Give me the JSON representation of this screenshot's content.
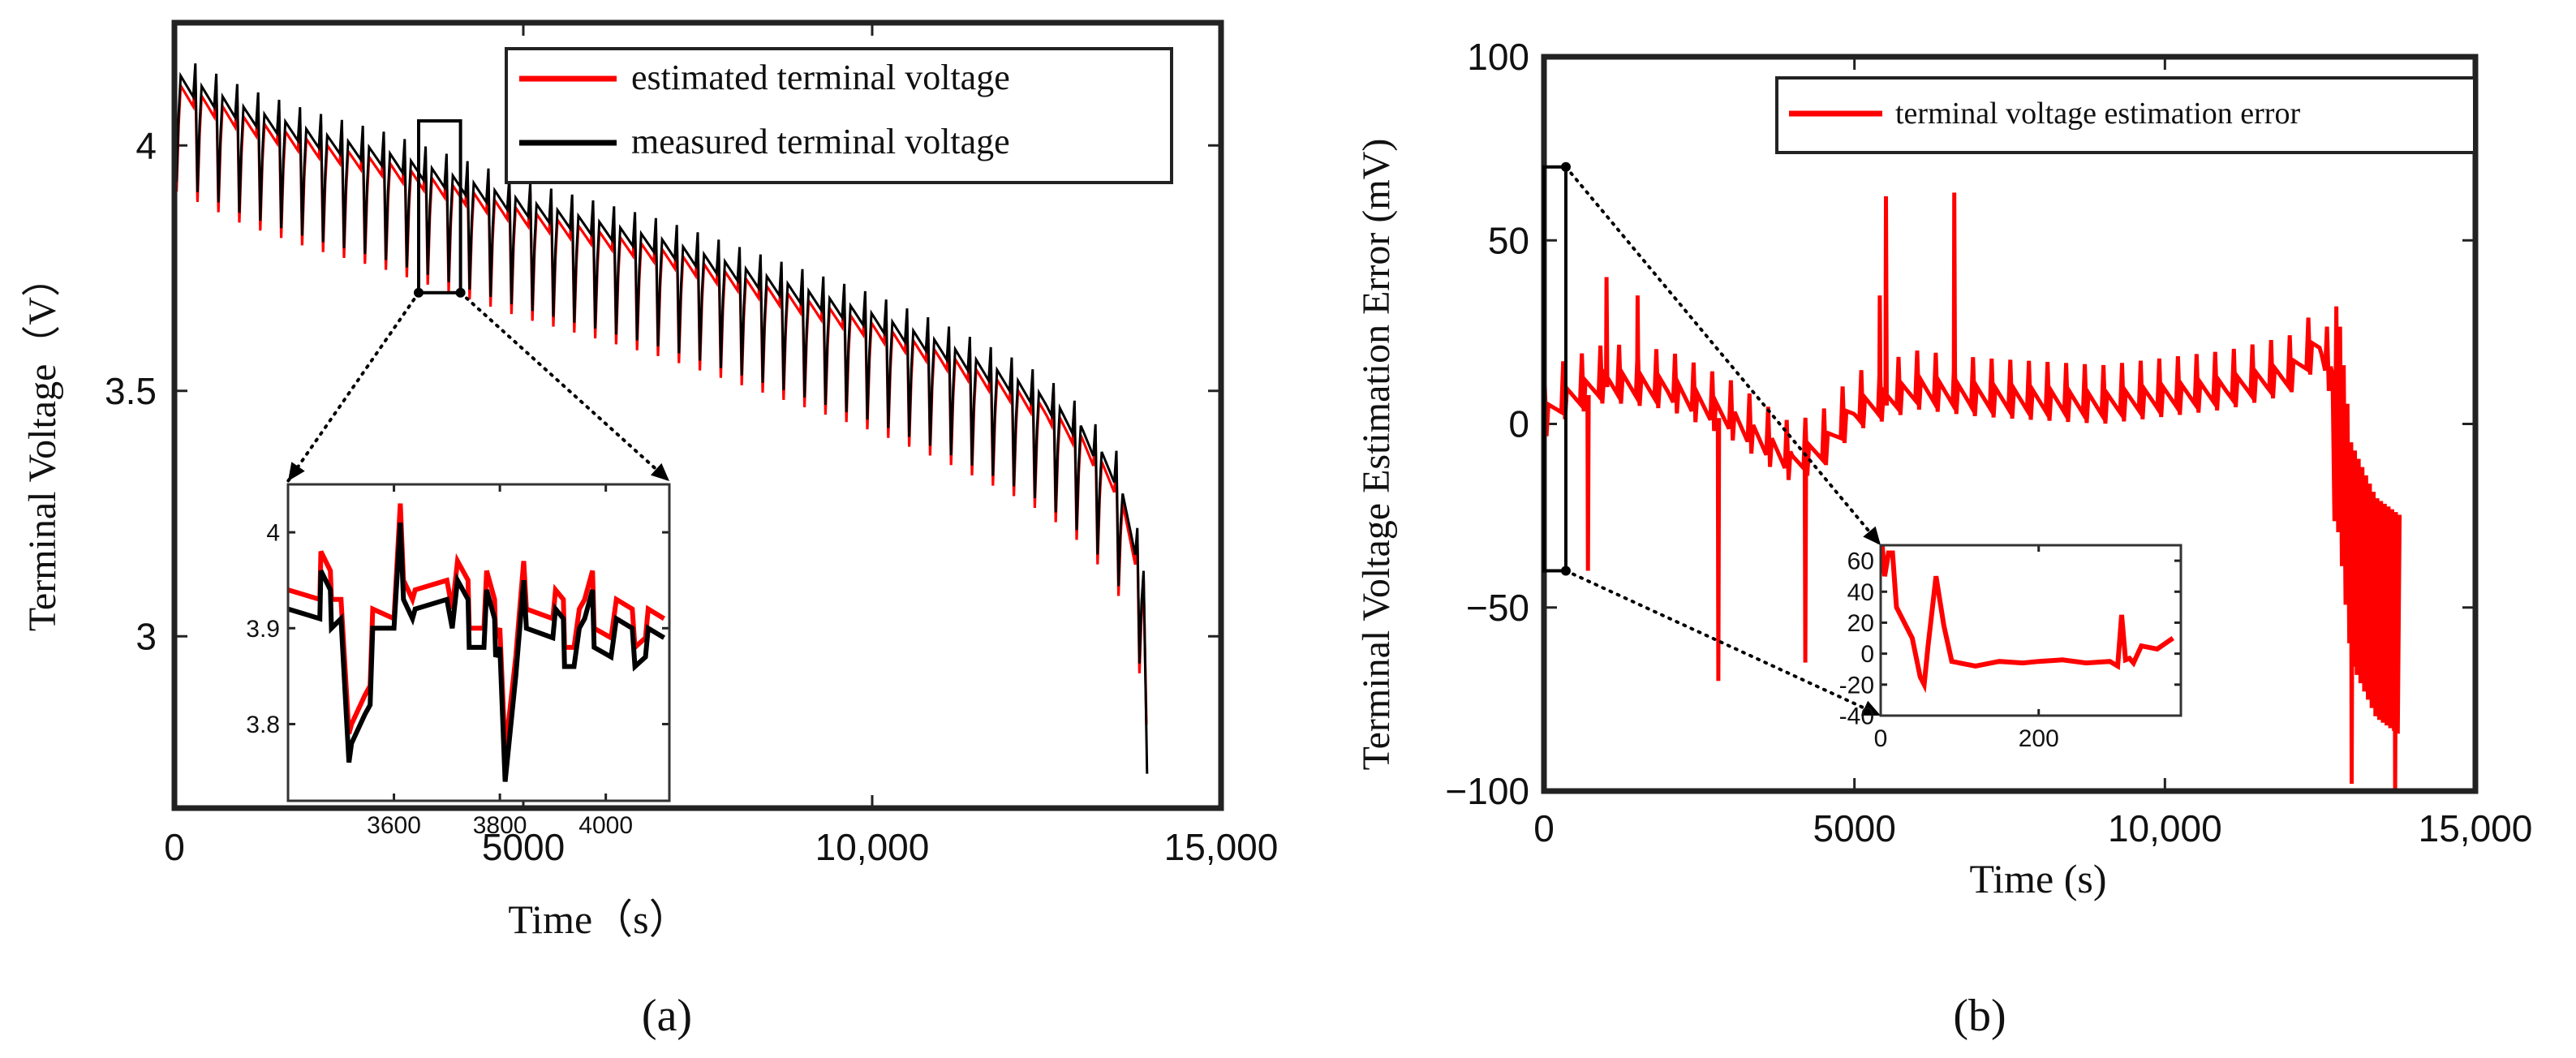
{
  "chart_data": [
    {
      "type": "line",
      "panel_label": "(a)",
      "xlabel": "Time（s）",
      "ylabel": "Terminal Voltage（V）",
      "xlim": [
        0,
        15000
      ],
      "ylim": [
        2.65,
        4.25
      ],
      "x_ticks": [
        0,
        5000,
        10000,
        15000
      ],
      "x_tick_labels": [
        "0",
        "5000",
        "10,000",
        "15,000"
      ],
      "y_ticks": [
        3,
        3.5,
        4
      ],
      "y_tick_labels": [
        "3",
        "3.5",
        "4"
      ],
      "legend": [
        {
          "name": "estimated terminal voltage",
          "color": "#ff0000"
        },
        {
          "name": "measured terminal voltage",
          "color": "#000000"
        }
      ],
      "series_desc": {
        "x": [
          0,
          1000,
          2000,
          3000,
          4000,
          5000,
          6000,
          7000,
          8000,
          9000,
          10000,
          11000,
          12000,
          12500,
          13000,
          13500,
          13900
        ],
        "baseline": [
          4.12,
          4.05,
          4.0,
          3.96,
          3.91,
          3.86,
          3.82,
          3.78,
          3.73,
          3.68,
          3.63,
          3.57,
          3.5,
          3.46,
          3.4,
          3.31,
          3.1
        ],
        "pulse_period": 300,
        "pulse_drop": 0.2,
        "end_dip": 2.72
      },
      "zoom_box": {
        "x_range": [
          3500,
          4100
        ],
        "y_range": [
          3.7,
          4.05
        ]
      },
      "inset": {
        "xlim": [
          3400,
          4120
        ],
        "ylim": [
          3.72,
          4.05
        ],
        "x_ticks": [
          3600,
          3800,
          4000
        ],
        "x_tick_labels": [
          "3600",
          "3800",
          "4000"
        ],
        "y_ticks": [
          3.8,
          3.9,
          4
        ],
        "y_tick_labels": [
          "3.8",
          "3.9",
          "4"
        ],
        "estimated": {
          "x": [
            3400,
            3460,
            3462,
            3480,
            3482,
            3500,
            3515,
            3520,
            3545,
            3555,
            3560,
            3600,
            3612,
            3618,
            3635,
            3640,
            3700,
            3710,
            3720,
            3740,
            3742,
            3770,
            3775,
            3790,
            3792,
            3800,
            3810,
            3830,
            3845,
            3850,
            3900,
            3905,
            3920,
            3922,
            3940,
            3950,
            3960,
            3975,
            3978,
            4010,
            4020,
            4050,
            4055,
            4075,
            4080,
            4110
          ],
          "y": [
            3.94,
            3.93,
            3.98,
            3.96,
            3.93,
            3.93,
            3.79,
            3.8,
            3.83,
            3.84,
            3.92,
            3.91,
            4.03,
            3.95,
            3.93,
            3.94,
            3.95,
            3.92,
            3.97,
            3.95,
            3.9,
            3.9,
            3.96,
            3.93,
            3.89,
            3.9,
            3.77,
            3.87,
            3.97,
            3.92,
            3.91,
            3.94,
            3.93,
            3.88,
            3.88,
            3.92,
            3.93,
            3.96,
            3.9,
            3.89,
            3.93,
            3.92,
            3.88,
            3.89,
            3.92,
            3.91
          ]
        },
        "measured": {
          "x": [
            3400,
            3460,
            3462,
            3480,
            3482,
            3500,
            3515,
            3520,
            3545,
            3555,
            3560,
            3600,
            3612,
            3618,
            3635,
            3640,
            3700,
            3710,
            3720,
            3740,
            3742,
            3770,
            3775,
            3790,
            3792,
            3800,
            3810,
            3830,
            3845,
            3850,
            3900,
            3905,
            3920,
            3922,
            3940,
            3950,
            3960,
            3975,
            3978,
            4010,
            4020,
            4050,
            4055,
            4075,
            4080,
            4110
          ],
          "y": [
            3.92,
            3.91,
            3.96,
            3.94,
            3.9,
            3.91,
            3.76,
            3.78,
            3.81,
            3.82,
            3.9,
            3.9,
            4.01,
            3.93,
            3.91,
            3.92,
            3.93,
            3.9,
            3.95,
            3.93,
            3.88,
            3.88,
            3.94,
            3.91,
            3.87,
            3.88,
            3.74,
            3.85,
            3.95,
            3.9,
            3.89,
            3.92,
            3.91,
            3.86,
            3.86,
            3.9,
            3.91,
            3.94,
            3.88,
            3.87,
            3.91,
            3.9,
            3.86,
            3.87,
            3.9,
            3.89
          ]
        }
      }
    },
    {
      "type": "line",
      "panel_label": "(b)",
      "xlabel": "Time  (s)",
      "ylabel": "Terminal Voltage Estimation Error  (mV)",
      "xlim": [
        0,
        15000
      ],
      "ylim": [
        -100,
        100
      ],
      "x_ticks": [
        0,
        5000,
        10000,
        15000
      ],
      "x_tick_labels": [
        "0",
        "5000",
        "10,000",
        "15,000"
      ],
      "y_ticks": [
        -100,
        -50,
        0,
        50,
        100
      ],
      "y_tick_labels": [
        "−100",
        "−50",
        "0",
        "50",
        "100"
      ],
      "legend": [
        {
          "name": "terminal voltage estimation error",
          "color": "#ff0000"
        }
      ],
      "series_desc": {
        "x": [
          0,
          300,
          1000,
          2000,
          3000,
          4000,
          4500,
          5000,
          6000,
          7000,
          8000,
          9000,
          10000,
          11000,
          12000,
          12500,
          12800,
          13000,
          13400,
          13800
        ],
        "baseline": [
          0,
          5,
          10,
          8,
          0,
          -12,
          -8,
          2,
          8,
          6,
          5,
          4,
          6,
          8,
          12,
          20,
          5,
          -30,
          -45,
          -50
        ],
        "spikes": [
          {
            "x": 5500,
            "y": 62
          },
          {
            "x": 6600,
            "y": 63
          },
          {
            "x": 1000,
            "y": 40
          },
          {
            "x": 1500,
            "y": 35
          },
          {
            "x": 5400,
            "y": 35
          },
          {
            "x": 2800,
            "y": -70
          },
          {
            "x": 4200,
            "y": -65
          },
          {
            "x": 700,
            "y": -40
          },
          {
            "x": 13000,
            "y": -98
          },
          {
            "x": 13700,
            "y": -100
          }
        ]
      },
      "zoom_box": {
        "x_range": [
          0,
          300
        ],
        "y_range": [
          -40,
          70
        ]
      },
      "inset": {
        "xlim": [
          0,
          380
        ],
        "ylim": [
          -40,
          70
        ],
        "x_ticks": [
          0,
          200
        ],
        "x_tick_labels": [
          "0",
          "200"
        ],
        "y_ticks": [
          -40,
          -20,
          0,
          20,
          40,
          60
        ],
        "y_tick_labels": [
          "-40",
          "-20",
          "0",
          "20",
          "40",
          "60"
        ],
        "x": [
          2,
          5,
          10,
          15,
          20,
          30,
          40,
          50,
          55,
          60,
          70,
          80,
          90,
          120,
          150,
          180,
          200,
          230,
          260,
          290,
          300,
          305,
          310,
          315,
          320,
          330,
          350,
          370
        ],
        "y": [
          70,
          50,
          65,
          65,
          30,
          20,
          10,
          -15,
          -20,
          5,
          50,
          18,
          -5,
          -8,
          -5,
          -6,
          -5,
          -4,
          -6,
          -5,
          -8,
          25,
          -4,
          -3,
          -6,
          5,
          3,
          10
        ]
      }
    }
  ]
}
